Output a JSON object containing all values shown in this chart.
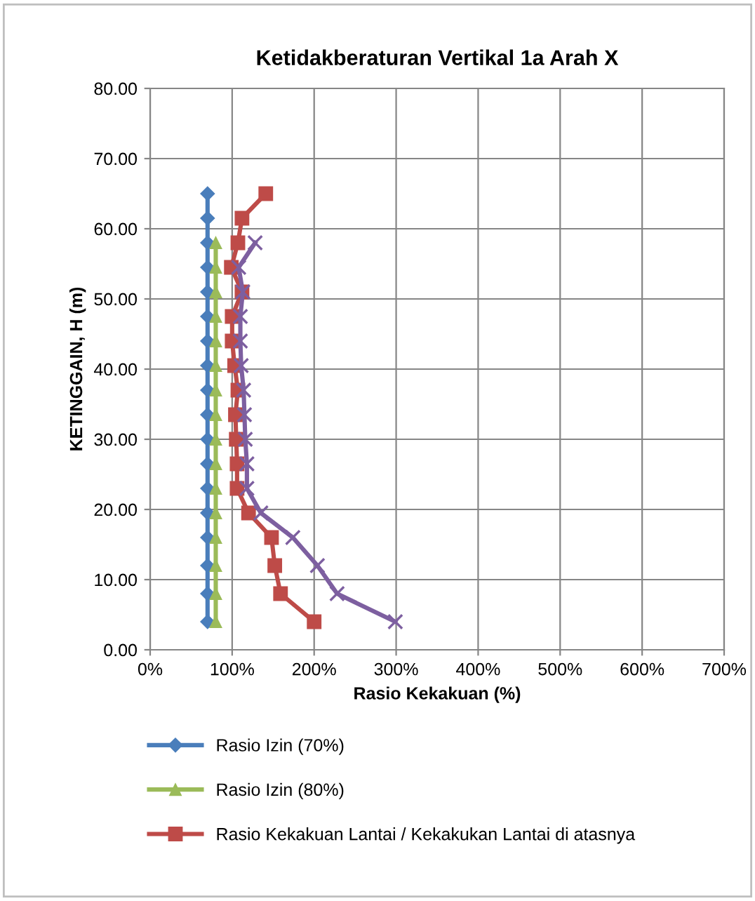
{
  "chart_data": {
    "type": "line",
    "title": "Ketidakberaturan Vertikal 1a Arah X",
    "xlabel": "Rasio Kekakuan (%)",
    "ylabel": "KETINGGAIN, H (m)",
    "xlim": [
      0,
      700
    ],
    "xticks": [
      {
        "value": 0,
        "label": "0%"
      },
      {
        "value": 100,
        "label": "100%"
      },
      {
        "value": 200,
        "label": "200%"
      },
      {
        "value": 300,
        "label": "300%"
      },
      {
        "value": 400,
        "label": "400%"
      },
      {
        "value": 500,
        "label": "500%"
      },
      {
        "value": 600,
        "label": "600%"
      },
      {
        "value": 700,
        "label": "700%"
      }
    ],
    "ylim": [
      0,
      80
    ],
    "yticks": [
      {
        "value": 0,
        "label": "0.00"
      },
      {
        "value": 10,
        "label": "10.00"
      },
      {
        "value": 20,
        "label": "20.00"
      },
      {
        "value": 30,
        "label": "30.00"
      },
      {
        "value": 40,
        "label": "40.00"
      },
      {
        "value": 50,
        "label": "50.00"
      },
      {
        "value": 60,
        "label": "60.00"
      },
      {
        "value": 70,
        "label": "70.00"
      },
      {
        "value": 80,
        "label": "80.00"
      }
    ],
    "grid": true,
    "legend": "bottom",
    "series": [
      {
        "name": "Rasio Izin (70%)",
        "color": "#4a7ebb",
        "marker": "diamond",
        "x": [
          70,
          70,
          70,
          70,
          70,
          70,
          70,
          70,
          70,
          70,
          70,
          70,
          70,
          70,
          70,
          70,
          70,
          70
        ],
        "values": [
          4,
          8,
          12,
          16,
          19.5,
          23,
          26.5,
          30,
          33.5,
          37,
          40.5,
          44,
          47.5,
          51,
          54.5,
          58,
          61.5,
          65
        ]
      },
      {
        "name": "Rasio Izin (80%)",
        "color": "#9bbb59",
        "marker": "triangle",
        "x": [
          80,
          80,
          80,
          80,
          80,
          80,
          80,
          80,
          80,
          80,
          80,
          80,
          80,
          80,
          80,
          80
        ],
        "values": [
          4,
          8,
          12,
          16,
          19.5,
          23,
          26.5,
          30,
          33.5,
          37,
          40.5,
          44,
          47.5,
          51,
          54.5,
          58
        ]
      },
      {
        "name": "Rasio Kekakuan Lantai / Kekakukan Lantai di atasnya",
        "color": "#be4b48",
        "marker": "square",
        "x": [
          200,
          159,
          152,
          148,
          120,
          106,
          106,
          105,
          104,
          107,
          103,
          100,
          100,
          112,
          99,
          107,
          112,
          141
        ],
        "values": [
          4,
          8,
          12,
          16,
          19.5,
          23,
          26.5,
          30,
          33.5,
          37,
          40.5,
          44,
          47.5,
          51,
          54.5,
          58,
          61.5,
          65
        ]
      },
      {
        "color": "#7d5fa0",
        "marker": "cross",
        "x": [
          299,
          228,
          204,
          174,
          135,
          118,
          118,
          116,
          115,
          114,
          111,
          110,
          110,
          113,
          108,
          128
        ],
        "values": [
          4,
          8,
          12,
          16,
          19.5,
          23,
          26.5,
          30,
          33.5,
          37,
          40.5,
          44,
          47.5,
          51,
          54.5,
          58
        ]
      }
    ]
  }
}
